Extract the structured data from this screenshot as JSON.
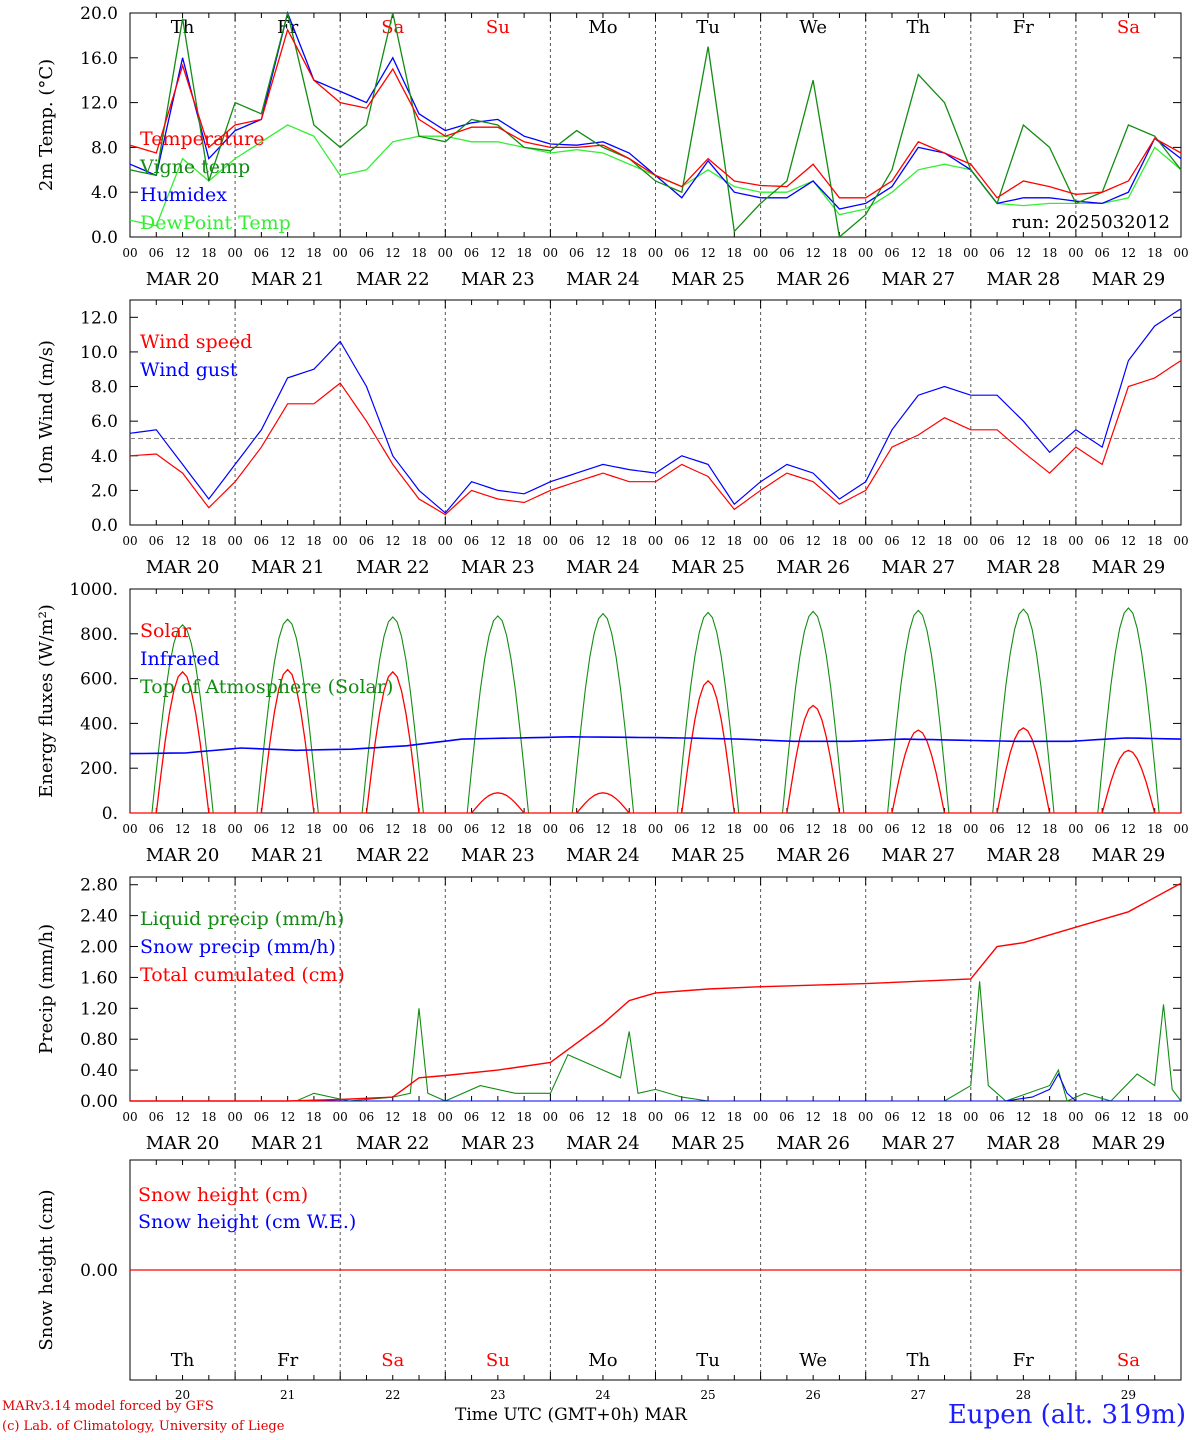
{
  "footer": {
    "credit_line1": "MARv3.14 model forced by GFS",
    "credit_line2": "(c) Lab. of Climatology, University of Liege",
    "x_title": "Time UTC (GMT+0h) MAR",
    "station": "Eupen (alt. 319m)",
    "run": "run: 2025032012"
  },
  "time_axis": {
    "hour_ticks": [
      "00",
      "06",
      "12",
      "18"
    ],
    "date_labels": [
      "MAR 20",
      "MAR 21",
      "MAR 22",
      "MAR 23",
      "MAR 24",
      "MAR 25",
      "MAR 26",
      "MAR 27",
      "MAR 28",
      "MAR 29"
    ],
    "weekdays": [
      "Th",
      "Fr",
      "Sa",
      "Su",
      "Mo",
      "Tu",
      "We",
      "Th",
      "Fr",
      "Sa"
    ],
    "weekend_days": [
      "Sa",
      "Su"
    ],
    "day_numbers": [
      "20",
      "21",
      "22",
      "23",
      "24",
      "25",
      "26",
      "27",
      "28",
      "29"
    ],
    "x_range_hours": [
      0,
      240
    ]
  },
  "colors": {
    "red": "#ff0000",
    "green": "#128c12",
    "blue": "#0000ff",
    "lightgreen": "#33ee33",
    "grid": "#555555"
  },
  "chart_data": [
    {
      "type": "line",
      "ylabel": "2m Temp. (°C)",
      "ylim": [
        0,
        20
      ],
      "yticks": [
        "0.0",
        "4.0",
        "8.0",
        "12.0",
        "16.0",
        "20.0"
      ],
      "x_hours": [
        0,
        6,
        12,
        18,
        24,
        30,
        36,
        42,
        48,
        54,
        60,
        66,
        72,
        78,
        84,
        90,
        96,
        102,
        108,
        114,
        120,
        126,
        132,
        138,
        144,
        150,
        156,
        162,
        168,
        174,
        180,
        186,
        192,
        198,
        204,
        210,
        216,
        222,
        228,
        234,
        240
      ],
      "series": [
        {
          "name": "Temperature",
          "color": "#ff0000",
          "values": [
            8.2,
            7.5,
            15.3,
            8.0,
            10.0,
            10.5,
            18.5,
            14.0,
            12.0,
            11.5,
            15.0,
            10.5,
            9.0,
            9.8,
            9.8,
            8.5,
            8.0,
            8.0,
            8.2,
            7.0,
            5.5,
            4.5,
            7.0,
            5.0,
            4.6,
            4.5,
            6.5,
            3.5,
            3.5,
            5.0,
            8.5,
            7.5,
            6.5,
            3.5,
            5.0,
            4.5,
            3.8,
            4.0,
            5.0,
            8.8,
            7.5
          ]
        },
        {
          "name": "Vigne temp",
          "color": "#128c12",
          "values": [
            6.0,
            5.5,
            19.5,
            5.0,
            12.0,
            11.0,
            20.0,
            10.0,
            8.0,
            10.0,
            20.0,
            9.0,
            8.5,
            10.5,
            10.0,
            8.0,
            7.7,
            9.5,
            8.0,
            7.0,
            5.0,
            4.0,
            17.0,
            0.5,
            3.0,
            5.0,
            14.0,
            0.0,
            2.0,
            6.0,
            14.5,
            12.0,
            6.0,
            3.0,
            10.0,
            8.0,
            3.0,
            4.0,
            10.0,
            9.0,
            6.0
          ]
        },
        {
          "name": "Humidex",
          "color": "#0000ff",
          "values": [
            6.5,
            5.5,
            16.0,
            7.0,
            9.5,
            10.5,
            20.0,
            14.0,
            13.0,
            12.0,
            16.0,
            11.0,
            9.5,
            10.2,
            10.5,
            9.0,
            8.3,
            8.2,
            8.5,
            7.5,
            5.5,
            3.5,
            6.8,
            4.0,
            3.5,
            3.5,
            5.0,
            2.5,
            3.0,
            4.5,
            8.0,
            7.5,
            6.0,
            3.0,
            3.5,
            3.5,
            3.2,
            3.0,
            4.0,
            8.8,
            7.0
          ]
        },
        {
          "name": "DewPoint Temp",
          "color": "#33ee33",
          "values": [
            1.5,
            1.0,
            7.0,
            5.0,
            7.0,
            8.5,
            10.0,
            9.0,
            5.5,
            6.0,
            8.5,
            9.0,
            9.0,
            8.5,
            8.5,
            8.0,
            7.5,
            7.8,
            7.5,
            6.5,
            5.5,
            4.5,
            6.0,
            4.5,
            4.0,
            4.0,
            5.0,
            2.0,
            2.5,
            4.0,
            6.0,
            6.5,
            6.0,
            3.0,
            2.8,
            3.0,
            3.0,
            3.0,
            3.5,
            8.0,
            6.0
          ]
        }
      ]
    },
    {
      "type": "line",
      "ylabel": "10m Wind (m/s)",
      "ylim": [
        0,
        13
      ],
      "yticks": [
        "0.0",
        "2.0",
        "4.0",
        "6.0",
        "8.0",
        "10.0",
        "12.0"
      ],
      "reference_line": 5,
      "x_hours": [
        0,
        6,
        12,
        18,
        24,
        30,
        36,
        42,
        48,
        54,
        60,
        66,
        72,
        78,
        84,
        90,
        96,
        102,
        108,
        114,
        120,
        126,
        132,
        138,
        144,
        150,
        156,
        162,
        168,
        174,
        180,
        186,
        192,
        198,
        204,
        210,
        216,
        222,
        228,
        234,
        240
      ],
      "series": [
        {
          "name": "Wind speed",
          "color": "#ff0000",
          "values": [
            4.0,
            4.1,
            3.0,
            1.0,
            2.5,
            4.5,
            7.0,
            7.0,
            8.2,
            6.0,
            3.5,
            1.5,
            0.6,
            2.0,
            1.5,
            1.3,
            2.0,
            2.5,
            3.0,
            2.5,
            2.5,
            3.5,
            2.8,
            0.9,
            2.0,
            3.0,
            2.5,
            1.2,
            2.0,
            4.5,
            5.2,
            6.2,
            5.5,
            5.5,
            4.2,
            3.0,
            4.5,
            3.5,
            8.0,
            8.5,
            9.5
          ]
        },
        {
          "name": "Wind gust",
          "color": "#0000ff",
          "values": [
            5.3,
            5.5,
            3.5,
            1.5,
            3.5,
            5.5,
            8.5,
            9.0,
            10.6,
            8.0,
            4.0,
            2.0,
            0.7,
            2.5,
            2.0,
            1.8,
            2.5,
            3.0,
            3.5,
            3.2,
            3.0,
            4.0,
            3.5,
            1.2,
            2.5,
            3.5,
            3.0,
            1.5,
            2.5,
            5.5,
            7.5,
            8.0,
            7.5,
            7.5,
            6.0,
            4.2,
            5.5,
            4.5,
            9.5,
            11.5,
            12.5
          ]
        }
      ]
    },
    {
      "type": "line",
      "ylabel": "Energy fluxes (W/m²)",
      "ylim": [
        0,
        1000
      ],
      "yticks": [
        "0.",
        "200.",
        "400.",
        "600.",
        "800.",
        "1000."
      ],
      "solar_peaks": [
        630,
        640,
        630,
        90,
        90,
        590,
        480,
        370,
        380,
        280
      ],
      "toa_peaks": [
        840,
        865,
        875,
        880,
        890,
        895,
        900,
        905,
        910,
        915
      ],
      "infrared": [
        265,
        268,
        290,
        280,
        285,
        300,
        330,
        335,
        340,
        338,
        335,
        330,
        320,
        320,
        330,
        325,
        320,
        320,
        335,
        330
      ],
      "series": [
        {
          "name": "Solar",
          "color": "#ff0000"
        },
        {
          "name": "Infrared",
          "color": "#0000ff"
        },
        {
          "name": "Top of Atmosphere (Solar)",
          "color": "#128c12"
        }
      ]
    },
    {
      "type": "line",
      "ylabel": "Precip (mm/h)",
      "ylim": [
        0,
        2.9
      ],
      "yticks": [
        "0.00",
        "0.40",
        "0.80",
        "1.20",
        "1.60",
        "2.00",
        "2.40",
        "2.80"
      ],
      "cumulated": {
        "x_hours": [
          0,
          36,
          48,
          60,
          66,
          72,
          84,
          96,
          108,
          114,
          120,
          132,
          144,
          168,
          192,
          198,
          204,
          216,
          228,
          240
        ],
        "values": [
          0,
          0,
          0.02,
          0.05,
          0.3,
          0.33,
          0.4,
          0.5,
          1.0,
          1.3,
          1.4,
          1.45,
          1.48,
          1.52,
          1.58,
          2.0,
          2.05,
          2.25,
          2.45,
          2.82
        ]
      },
      "liquid": {
        "x_hours": [
          0,
          38,
          42,
          50,
          60,
          64,
          66,
          68,
          72,
          80,
          88,
          96,
          100,
          104,
          108,
          112,
          114,
          116,
          120,
          126,
          132,
          144,
          168,
          186,
          192,
          194,
          196,
          200,
          210,
          212,
          214,
          218,
          224,
          230,
          234,
          236,
          238,
          240
        ],
        "values": [
          0,
          0,
          0.1,
          0,
          0.05,
          0.1,
          1.2,
          0.1,
          0,
          0.2,
          0.1,
          0.1,
          0.6,
          0.5,
          0.4,
          0.3,
          0.9,
          0.1,
          0.15,
          0.05,
          0,
          0,
          0,
          0,
          0.2,
          1.55,
          0.2,
          0,
          0.2,
          0.4,
          0,
          0.1,
          0,
          0.35,
          0.2,
          1.25,
          0.15,
          0
        ]
      },
      "snow": {
        "x_hours": [
          0,
          200,
          206,
          210,
          212,
          214,
          216,
          222,
          240
        ],
        "values": [
          0,
          0,
          0.05,
          0.15,
          0.35,
          0.1,
          0,
          0,
          0
        ]
      },
      "series": [
        {
          "name": "Liquid precip (mm/h)",
          "color": "#128c12"
        },
        {
          "name": "Snow precip (mm/h)",
          "color": "#0000ff"
        },
        {
          "name": "Total cumulated (cm)",
          "color": "#ff0000"
        }
      ]
    },
    {
      "type": "line",
      "ylabel": "Snow height (cm)",
      "yticks": [
        "0.00"
      ],
      "values": [
        0.0
      ],
      "series": [
        {
          "name": "Snow height (cm)",
          "color": "#ff0000"
        },
        {
          "name": "Snow height (cm W.E.)",
          "color": "#0000ff"
        }
      ]
    }
  ]
}
